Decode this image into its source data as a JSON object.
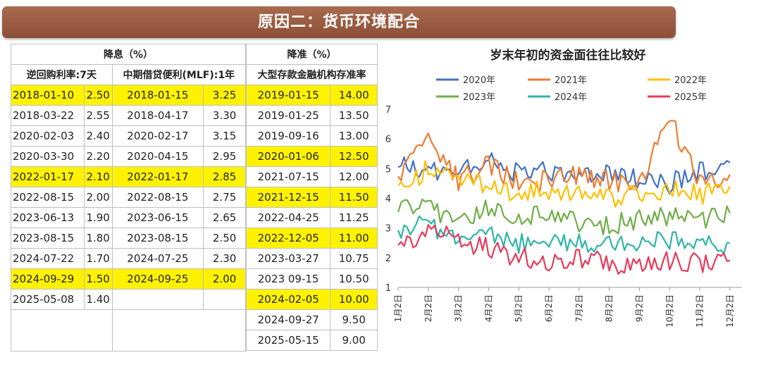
{
  "banner": {
    "title": "原因二：货币环境配合"
  },
  "rate_cut": {
    "header": "降息（%）",
    "col1_label": "逆回购利率:7天",
    "col2_label": "中期借贷便利(MLF):1年",
    "rows": [
      {
        "d1": "2018-01-10",
        "v1": "2.50",
        "d2": "2018-01-15",
        "v2": "3.25",
        "hl1": true,
        "hl2": true
      },
      {
        "d1": "2018-03-22",
        "v1": "2.55",
        "d2": "2018-04-17",
        "v2": "3.30",
        "hl1": false,
        "hl2": false
      },
      {
        "d1": "2020-02-03",
        "v1": "2.40",
        "d2": "2020-02-17",
        "v2": "3.15",
        "hl1": false,
        "hl2": false
      },
      {
        "d1": "2020-03-30",
        "v1": "2.20",
        "d2": "2020-04-15",
        "v2": "2.95",
        "hl1": false,
        "hl2": false
      },
      {
        "d1": "2022-01-17",
        "v1": "2.10",
        "d2": "2022-01-17",
        "v2": "2.85",
        "hl1": true,
        "hl2": true
      },
      {
        "d1": "2022-08-15",
        "v1": "2.00",
        "d2": "2022-08-15",
        "v2": "2.75",
        "hl1": false,
        "hl2": false
      },
      {
        "d1": "2023-06-13",
        "v1": "1.90",
        "d2": "2023-06-15",
        "v2": "2.65",
        "hl1": false,
        "hl2": false
      },
      {
        "d1": "2023-08-15",
        "v1": "1.80",
        "d2": "2023-08-15",
        "v2": "2.50",
        "hl1": false,
        "hl2": false
      },
      {
        "d1": "2024-07-22",
        "v1": "1.70",
        "d2": "2024-07-25",
        "v2": "2.30",
        "hl1": false,
        "hl2": false
      },
      {
        "d1": "2024-09-29",
        "v1": "1.50",
        "d2": "2024-09-25",
        "v2": "2.00",
        "hl1": true,
        "hl2": true
      },
      {
        "d1": "2025-05-08",
        "v1": "1.40",
        "d2": "",
        "v2": "",
        "hl1": false,
        "hl2": false
      }
    ]
  },
  "rrr_cut": {
    "header": "降准（%）",
    "col_label": "大型存款金融机构存准率",
    "rows": [
      {
        "d": "2019-01-15",
        "v": "14.00",
        "hl": true
      },
      {
        "d": "2019-01-25",
        "v": "13.50",
        "hl": false
      },
      {
        "d": "2019-09-16",
        "v": "13.00",
        "hl": false
      },
      {
        "d": "2020-01-06",
        "v": "12.50",
        "hl": true
      },
      {
        "d": "2021-07-15",
        "v": "12.00",
        "hl": false
      },
      {
        "d": "2021-12-15",
        "v": "11.50",
        "hl": true
      },
      {
        "d": "2022-04-25",
        "v": "11.25",
        "hl": false
      },
      {
        "d": "2022-12-05",
        "v": "11.00",
        "hl": true
      },
      {
        "d": "2023-03-27",
        "v": "10.75",
        "hl": false
      },
      {
        "d": "2023 09-15",
        "v": "10.50",
        "hl": false
      },
      {
        "d": "2024-02-05",
        "v": "10.00",
        "hl": true
      },
      {
        "d": "2024-09-27",
        "v": "9.50",
        "hl": false
      },
      {
        "d": "2025-05-15",
        "v": "9.00",
        "hl": false
      }
    ]
  },
  "colors": {
    "highlight": "#fff200",
    "banner": "#9a5b41"
  },
  "chart_data": {
    "type": "line",
    "title": "岁末年初的资金面往往比较好",
    "xlabel": "",
    "ylabel": "",
    "ylim": [
      1,
      7
    ],
    "yticks": [
      "1",
      "2",
      "3",
      "4",
      "5",
      "6",
      "7"
    ],
    "categories": [
      "1月2日",
      "2月2日",
      "3月2日",
      "4月2日",
      "5月2日",
      "6月2日",
      "7月2日",
      "8月2日",
      "9月2日",
      "10月2日",
      "11月2日",
      "12月2日"
    ],
    "legend_position": "top",
    "series": [
      {
        "name": "2020年",
        "color": "#4472c4",
        "values": [
          5.2,
          4.9,
          4.8,
          5.3,
          4.8,
          4.9,
          4.7,
          4.8,
          4.6,
          4.5,
          4.9,
          5.2
        ]
      },
      {
        "name": "2021年",
        "color": "#ed7d31",
        "values": [
          4.7,
          6.2,
          4.6,
          5.1,
          4.5,
          4.6,
          4.8,
          4.6,
          4.5,
          6.7,
          4.5,
          4.8
        ]
      },
      {
        "name": "2022年",
        "color": "#ffc000",
        "values": [
          4.2,
          5.0,
          4.5,
          4.4,
          4.2,
          4.3,
          4.1,
          4.0,
          4.2,
          4.3,
          4.1,
          4.4
        ]
      },
      {
        "name": "2023年",
        "color": "#70ad47",
        "values": [
          3.8,
          3.6,
          3.4,
          3.6,
          3.3,
          3.5,
          3.2,
          3.1,
          3.3,
          3.4,
          3.2,
          3.5
        ]
      },
      {
        "name": "2024年",
        "color": "#2eb5a8",
        "values": [
          3.0,
          3.1,
          2.7,
          2.8,
          2.5,
          2.4,
          2.6,
          2.4,
          2.5,
          2.6,
          2.4,
          2.5
        ]
      },
      {
        "name": "2025年",
        "color": "#e63b5a",
        "values": [
          2.3,
          2.9,
          2.6,
          2.3,
          2.0,
          1.9,
          2.0,
          1.8,
          1.8,
          1.9,
          1.8,
          1.9
        ]
      }
    ]
  }
}
